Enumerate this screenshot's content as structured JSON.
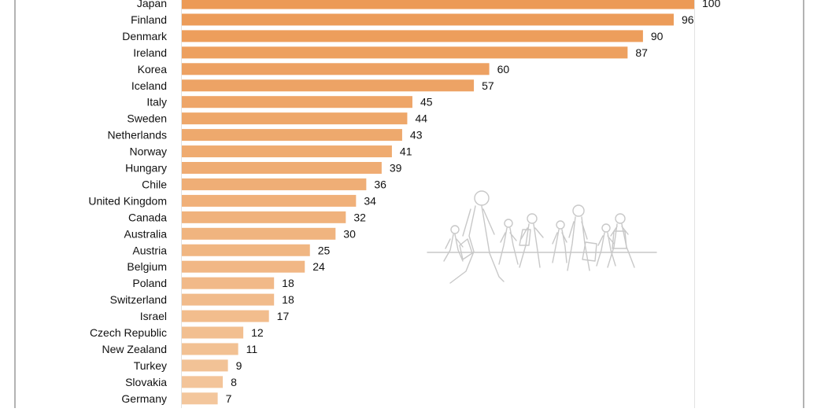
{
  "chart_data": {
    "type": "bar",
    "orientation": "horizontal",
    "categories": [
      "Japan",
      "Finland",
      "Denmark",
      "Ireland",
      "Korea",
      "Iceland",
      "Italy",
      "Sweden",
      "Netherlands",
      "Norway",
      "Hungary",
      "Chile",
      "United Kingdom",
      "Canada",
      "Australia",
      "Austria",
      "Belgium",
      "Poland",
      "Switzerland",
      "Israel",
      "Czech Republic",
      "New Zealand",
      "Turkey",
      "Slovakia",
      "Germany"
    ],
    "values": [
      100,
      96,
      90,
      87,
      60,
      57,
      45,
      44,
      43,
      41,
      39,
      36,
      34,
      32,
      30,
      25,
      24,
      18,
      18,
      17,
      12,
      11,
      9,
      8,
      7
    ],
    "xlim": [
      0,
      100
    ],
    "grid": false,
    "legend": "none",
    "colors": {
      "bar_dark": "#EC9A56",
      "bar_light": "#F3C69C",
      "text": "#111111",
      "frame": "#9a9a9a",
      "axis": "#dddddd",
      "illustration": "#c8c8c8"
    },
    "illustration_icon": "walking-people-illustration"
  }
}
